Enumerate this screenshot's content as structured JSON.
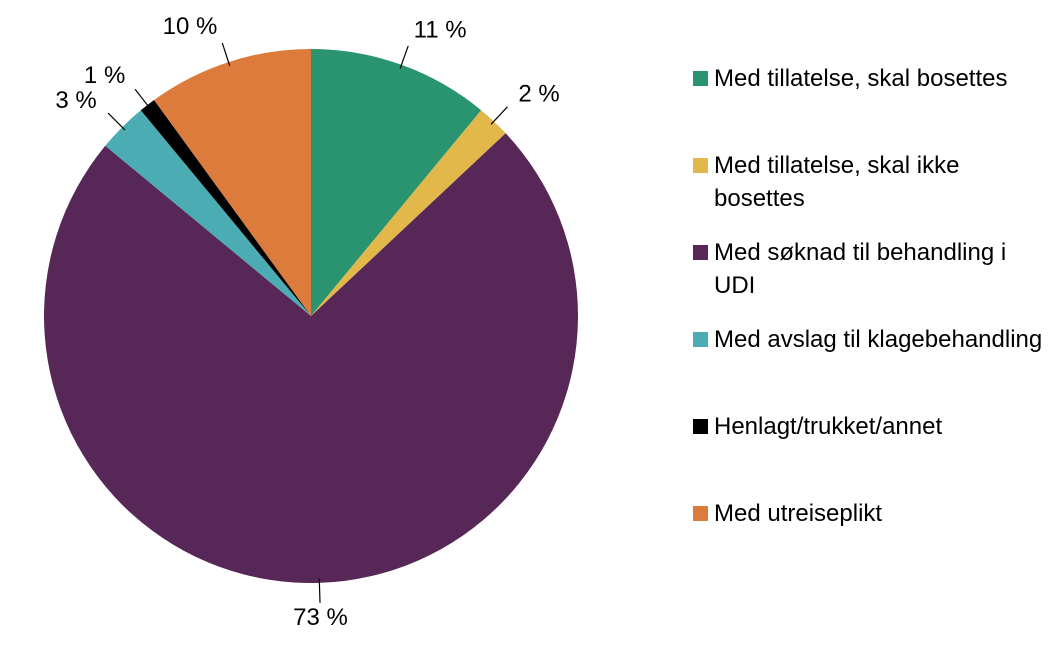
{
  "chart_data": {
    "type": "pie",
    "categories": [
      "Med tillatelse, skal bosettes",
      "Med tillatelse, skal ikke bosettes",
      "Med søknad til behandling i UDI",
      "Med avslag til klagebehandling",
      "Henlagt/trukket/annet",
      "Med utreiseplikt"
    ],
    "values": [
      11,
      2,
      73,
      3,
      1,
      10
    ],
    "value_labels": [
      "11 %",
      "2 %",
      "73 %",
      "3 %",
      "1 %",
      "10 %"
    ],
    "colors": [
      "#2a9470",
      "#e3b84a",
      "#572757",
      "#4bacb4",
      "#000000",
      "#dc7b3c"
    ]
  }
}
